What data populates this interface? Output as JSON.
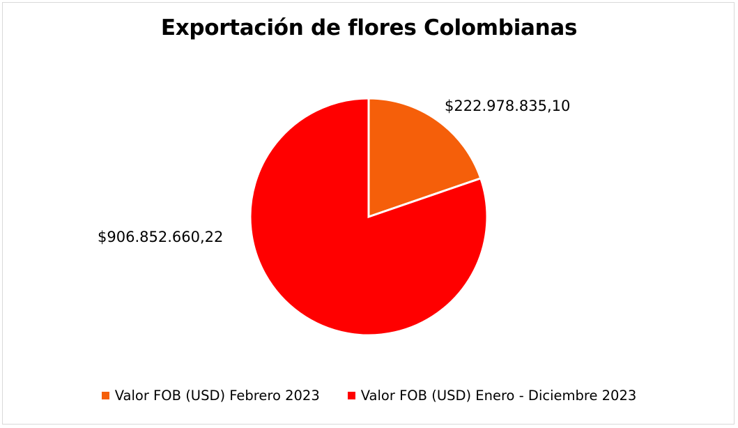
{
  "chart_data": {
    "type": "pie",
    "title": "Exportación de flores Colombianas",
    "categories": [
      "Valor FOB (USD) Febrero 2023",
      "Valor FOB (USD) Enero - Diciembre 2023"
    ],
    "values": [
      222978835.1,
      906852660.22
    ],
    "data_labels": [
      "$222.978.835,10",
      "$906.852.660,22"
    ],
    "colors": [
      "#f55f0a",
      "#ff0000"
    ],
    "legend_position": "bottom",
    "start_angle": "top",
    "direction": "clockwise"
  }
}
